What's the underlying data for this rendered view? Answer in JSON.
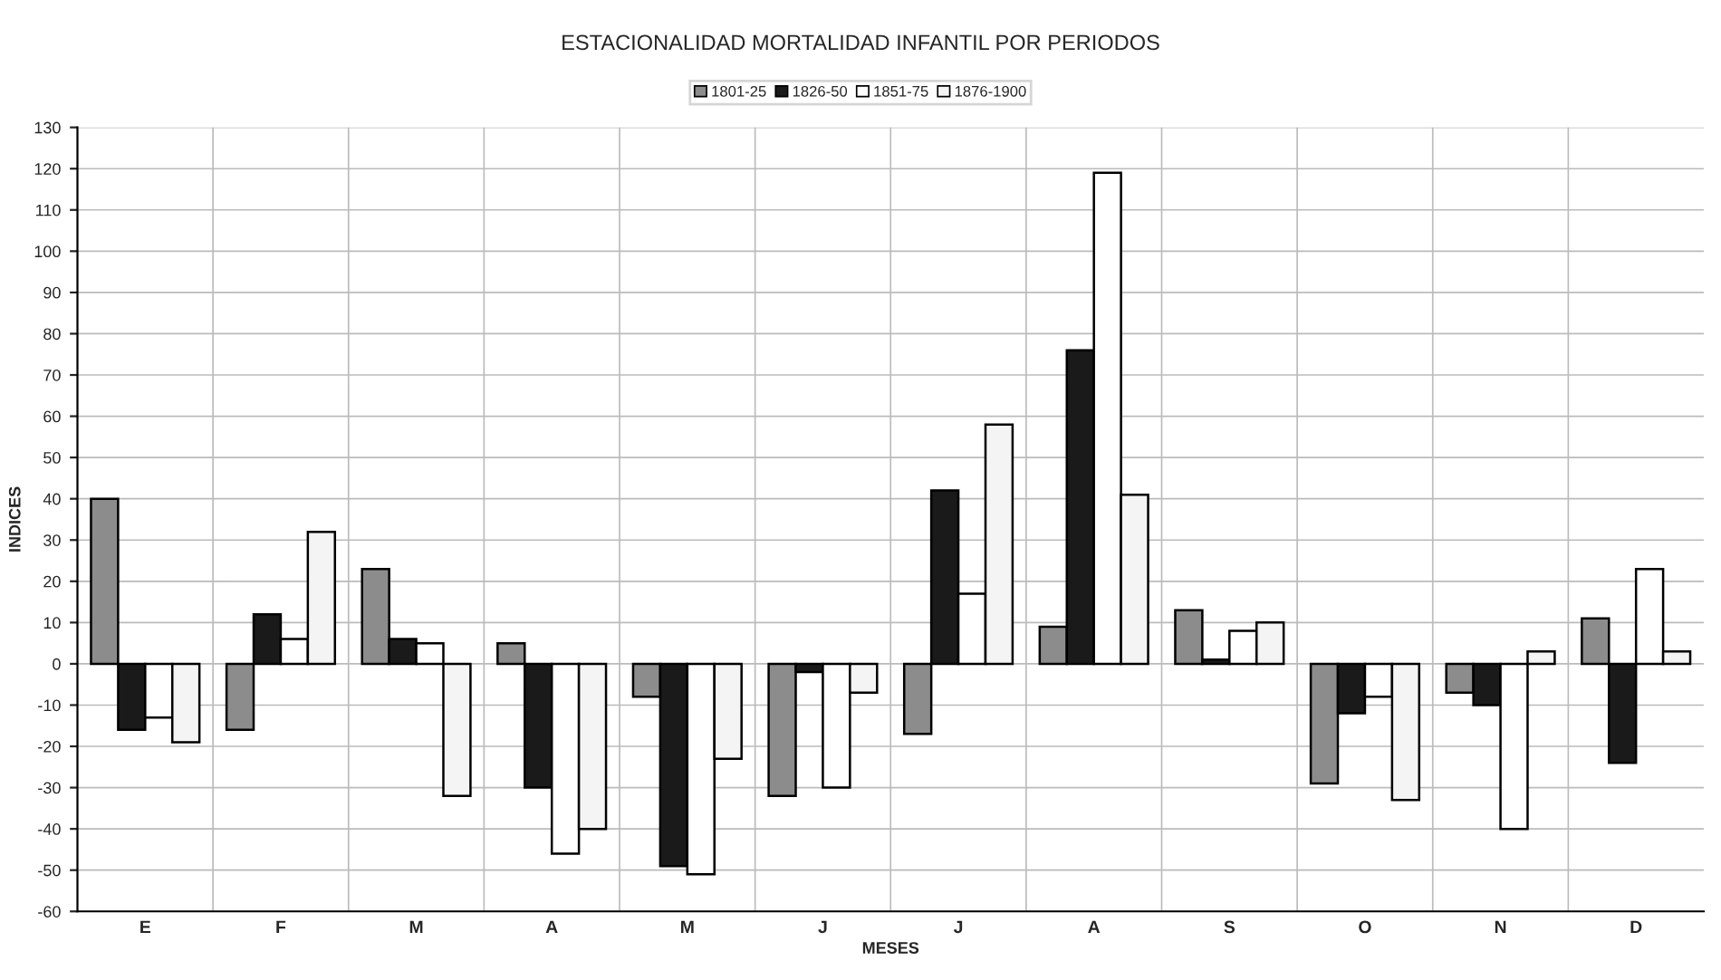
{
  "chart_data": {
    "type": "bar",
    "title": "ESTACIONALIDAD MORTALIDAD INFANTIL POR PERIODOS",
    "xlabel": "MESES",
    "ylabel": "INDICES",
    "categories": [
      "E",
      "F",
      "M",
      "A",
      "M",
      "J",
      "J",
      "A",
      "S",
      "O",
      "N",
      "D"
    ],
    "series": [
      {
        "name": "1801-25",
        "color": "#8c8c8c",
        "values": [
          40,
          -16,
          23,
          5,
          -8,
          -32,
          -17,
          9,
          13,
          -29,
          -7,
          11
        ]
      },
      {
        "name": "1826-50",
        "color": "#1a1a1a",
        "values": [
          -16,
          12,
          6,
          -30,
          -49,
          -2,
          42,
          76,
          1,
          -12,
          -10,
          -24
        ]
      },
      {
        "name": "1851-75",
        "color": "#ffffff",
        "values": [
          -13,
          6,
          5,
          -46,
          -51,
          -30,
          17,
          119,
          8,
          -8,
          -40,
          23
        ]
      },
      {
        "name": "1876-1900",
        "color": "#f4f4f4",
        "values": [
          -19,
          32,
          -32,
          -40,
          -23,
          -7,
          58,
          41,
          10,
          -33,
          3,
          3
        ]
      }
    ],
    "ylim": [
      -60,
      130
    ],
    "yticks": [
      -60,
      -50,
      -40,
      -30,
      -20,
      -10,
      0,
      10,
      20,
      30,
      40,
      50,
      60,
      70,
      80,
      90,
      100,
      110,
      120,
      130
    ],
    "grid": true,
    "legend": "top"
  }
}
